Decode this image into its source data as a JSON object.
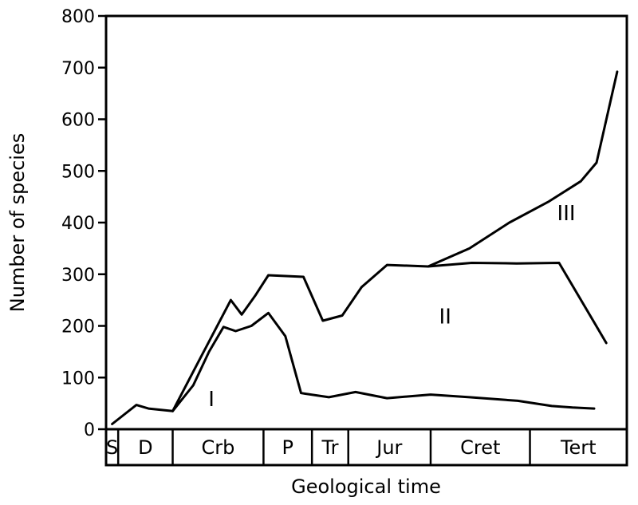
{
  "chart_data": {
    "type": "line",
    "title": "",
    "xlabel": "Geological time",
    "ylabel": "Number of species",
    "ylim": [
      0,
      800
    ],
    "yticks": [
      0,
      100,
      200,
      300,
      400,
      500,
      600,
      700,
      800
    ],
    "grid": false,
    "legend": "none",
    "periods": [
      {
        "label": "S",
        "start": 0,
        "end": 1.0
      },
      {
        "label": "D",
        "start": 1.0,
        "end": 5.5
      },
      {
        "label": "Crb",
        "start": 5.5,
        "end": 13.0
      },
      {
        "label": "P",
        "start": 13.0,
        "end": 17.0
      },
      {
        "label": "Tr",
        "start": 17.0,
        "end": 20.0
      },
      {
        "label": "Jur",
        "start": 20.0,
        "end": 26.8
      },
      {
        "label": "Cret",
        "start": 26.8,
        "end": 35.0
      },
      {
        "label": "Tert",
        "start": 35.0,
        "end": 40.5
      }
    ],
    "series": [
      {
        "points": [
          [
            0.5,
            10
          ],
          [
            2.5,
            47
          ],
          [
            3.5,
            40
          ],
          [
            5.5,
            35
          ],
          [
            7.2,
            85
          ],
          [
            8.5,
            150
          ],
          [
            9.7,
            198
          ],
          [
            10.7,
            190
          ],
          [
            12.0,
            200
          ],
          [
            13.4,
            225
          ],
          [
            14.8,
            180
          ],
          [
            16.1,
            70
          ],
          [
            18.4,
            62
          ],
          [
            20.6,
            72
          ],
          [
            23.2,
            60
          ],
          [
            26.8,
            67
          ],
          [
            30.0,
            62
          ],
          [
            34.0,
            55
          ],
          [
            36.8,
            45
          ],
          [
            38.5,
            42
          ],
          [
            40.3,
            40
          ]
        ]
      },
      {
        "points": [
          [
            5.5,
            35
          ],
          [
            7.5,
            125
          ],
          [
            10.3,
            250
          ],
          [
            11.2,
            222
          ],
          [
            12.3,
            258
          ],
          [
            13.4,
            298
          ],
          [
            16.3,
            295
          ],
          [
            17.9,
            210
          ],
          [
            19.5,
            220
          ],
          [
            21.1,
            275
          ],
          [
            23.2,
            318
          ],
          [
            26.6,
            315
          ],
          [
            30.2,
            322
          ],
          [
            33.9,
            321
          ],
          [
            37.4,
            322
          ],
          [
            40.3,
            207
          ],
          [
            41.3,
            167
          ]
        ]
      },
      {
        "points": [
          [
            26.6,
            315
          ],
          [
            30.0,
            350
          ],
          [
            33.3,
            400
          ],
          [
            36.5,
            440
          ],
          [
            39.2,
            480
          ],
          [
            40.5,
            516
          ],
          [
            42.2,
            692
          ]
        ]
      }
    ],
    "region_labels": [
      {
        "label": "I",
        "x": 8.7,
        "y": 45
      },
      {
        "label": "II",
        "x": 28.0,
        "y": 205
      },
      {
        "label": "III",
        "x": 38.0,
        "y": 405
      }
    ]
  }
}
